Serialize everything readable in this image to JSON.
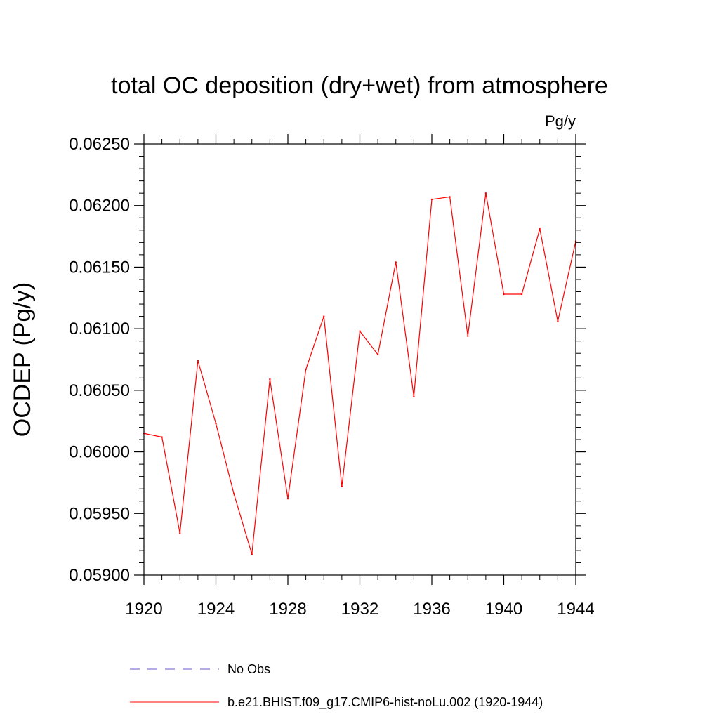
{
  "chart_data": {
    "type": "line",
    "title": "total OC deposition (dry+wet) from atmosphere",
    "units": "Pg/y",
    "xlabel": "",
    "ylabel": "OCDEP  (Pg/y)",
    "xlim": [
      1920,
      1944
    ],
    "ylim": [
      0.059,
      0.0625
    ],
    "x_ticks": [
      1920,
      1924,
      1928,
      1932,
      1936,
      1940,
      1944
    ],
    "x_tick_labels": [
      "1920",
      "1924",
      "1928",
      "1932",
      "1936",
      "1940",
      "1944"
    ],
    "y_ticks": [
      0.059,
      0.0595,
      0.06,
      0.0605,
      0.061,
      0.0615,
      0.062,
      0.0625
    ],
    "y_tick_labels": [
      "0.05900",
      "0.05950",
      "0.06000",
      "0.06050",
      "0.06100",
      "0.06150",
      "0.06200",
      "0.06250"
    ],
    "grid": false,
    "legend_position": "bottom",
    "series": [
      {
        "name": "b.e21.BHIST.f09_g17.CMIP6-hist-noLu.002 (1920-1944)",
        "color": "#ff0000",
        "style": "solid",
        "x": [
          1920,
          1921,
          1922,
          1923,
          1924,
          1925,
          1926,
          1927,
          1928,
          1929,
          1930,
          1931,
          1932,
          1933,
          1934,
          1935,
          1936,
          1937,
          1938,
          1939,
          1940,
          1941,
          1942,
          1943,
          1944
        ],
        "values": [
          0.06015,
          0.06012,
          0.05934,
          0.06074,
          0.06023,
          0.05966,
          0.05917,
          0.06059,
          0.05962,
          0.06067,
          0.0611,
          0.05972,
          0.06098,
          0.06079,
          0.06154,
          0.06045,
          0.06205,
          0.06207,
          0.06094,
          0.0621,
          0.06128,
          0.06128,
          0.06181,
          0.06106,
          0.06171
        ]
      }
    ],
    "legend": [
      {
        "label": "No Obs",
        "color": "#6a5acd",
        "style": "dashed"
      },
      {
        "label": "b.e21.BHIST.f09_g17.CMIP6-hist-noLu.002 (1920-1944)",
        "color": "#ff0000",
        "style": "solid"
      }
    ]
  }
}
